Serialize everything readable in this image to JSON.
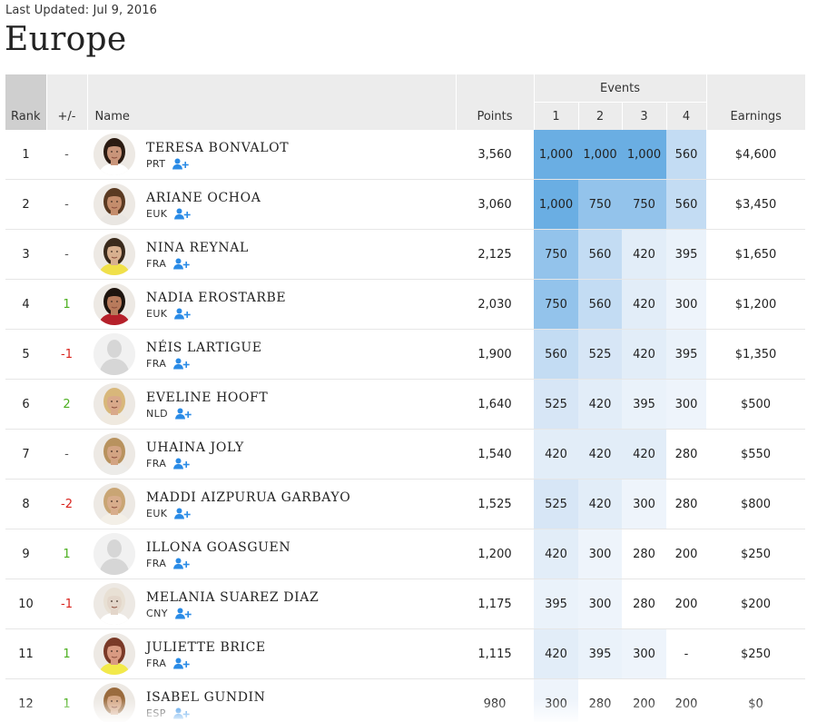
{
  "header": {
    "last_updated": "Last Updated: Jul 9, 2016",
    "title": "Europe"
  },
  "columns": {
    "rank": "Rank",
    "change": "+/-",
    "name": "Name",
    "points": "Points",
    "events": "Events",
    "event_numbers": [
      "1",
      "2",
      "3",
      "4"
    ],
    "earnings": "Earnings"
  },
  "icons": {
    "follow": "add-user-icon",
    "follow_color": "#2a8be6"
  },
  "event_colors": {
    "1000": "#6aaee3",
    "750": "#93c3eb",
    "560": "#c3dcf3",
    "525": "#d7e6f6",
    "420": "#e2edf8",
    "395": "#eaf2fa",
    "300": "#eef4fb",
    "280": "#ffffff",
    "200": "#ffffff"
  },
  "rows": [
    {
      "rank": "1",
      "change": "-",
      "trend": "none",
      "name": "TERESA BONVALOT",
      "country": "PRT",
      "points": "3,560",
      "events": [
        "1,000",
        "1,000",
        "1,000",
        "560"
      ],
      "earnings": "$4,600",
      "avatar": "photo",
      "skin": "#c9957a",
      "hair": "#2b1b12",
      "shirt": "#ffffff"
    },
    {
      "rank": "2",
      "change": "-",
      "trend": "none",
      "name": "ARIANE OCHOA",
      "country": "EUK",
      "points": "3,060",
      "events": [
        "1,000",
        "750",
        "750",
        "560"
      ],
      "earnings": "$3,450",
      "avatar": "photo",
      "skin": "#c48d6c",
      "hair": "#5a3a22",
      "shirt": "#e9e6e2"
    },
    {
      "rank": "3",
      "change": "-",
      "trend": "none",
      "name": "NINA REYNAL",
      "country": "FRA",
      "points": "2,125",
      "events": [
        "750",
        "560",
        "420",
        "395"
      ],
      "earnings": "$1,650",
      "avatar": "photo",
      "skin": "#d8b08f",
      "hair": "#3a2a1c",
      "shirt": "#f0e04a"
    },
    {
      "rank": "4",
      "change": "1",
      "trend": "up",
      "name": "NADIA EROSTARBE",
      "country": "EUK",
      "points": "2,030",
      "events": [
        "750",
        "560",
        "420",
        "300"
      ],
      "earnings": "$1,200",
      "avatar": "photo",
      "skin": "#b87b5c",
      "hair": "#1e140e",
      "shirt": "#b5202a"
    },
    {
      "rank": "5",
      "change": "-1",
      "trend": "down",
      "name": "NÉIS LARTIGUE",
      "country": "FRA",
      "points": "1,900",
      "events": [
        "560",
        "525",
        "420",
        "395"
      ],
      "earnings": "$1,350",
      "avatar": "placeholder"
    },
    {
      "rank": "6",
      "change": "2",
      "trend": "up",
      "name": "EVELINE HOOFT",
      "country": "NLD",
      "points": "1,640",
      "events": [
        "525",
        "420",
        "395",
        "300"
      ],
      "earnings": "$500",
      "avatar": "photo",
      "skin": "#d9a98a",
      "hair": "#d8b77a",
      "shirt": "#efe9df"
    },
    {
      "rank": "7",
      "change": "-",
      "trend": "none",
      "name": "UHAINA JOLY",
      "country": "FRA",
      "points": "1,540",
      "events": [
        "420",
        "420",
        "420",
        "280"
      ],
      "earnings": "$550",
      "avatar": "photo",
      "skin": "#d3a483",
      "hair": "#b8925e",
      "shirt": "#ecebe8"
    },
    {
      "rank": "8",
      "change": "-2",
      "trend": "down",
      "name": "MADDI AIZPURUA GARBAYO",
      "country": "EUK",
      "points": "1,525",
      "events": [
        "525",
        "420",
        "300",
        "280"
      ],
      "earnings": "$800",
      "avatar": "photo",
      "skin": "#d8ad8c",
      "hair": "#c9a574",
      "shirt": "#f3efe7"
    },
    {
      "rank": "9",
      "change": "1",
      "trend": "up",
      "name": "ILLONA GOASGUEN",
      "country": "FRA",
      "points": "1,200",
      "events": [
        "420",
        "300",
        "280",
        "200"
      ],
      "earnings": "$250",
      "avatar": "placeholder"
    },
    {
      "rank": "10",
      "change": "-1",
      "trend": "down",
      "name": "MELANIA SUAREZ DIAZ",
      "country": "CNY",
      "points": "1,175",
      "events": [
        "395",
        "300",
        "280",
        "200"
      ],
      "earnings": "$200",
      "avatar": "photo",
      "skin": "#e3d6ca",
      "hair": "#e8e0d4",
      "shirt": "#ffffff"
    },
    {
      "rank": "11",
      "change": "1",
      "trend": "up",
      "name": "JULIETTE BRICE",
      "country": "FRA",
      "points": "1,115",
      "events": [
        "420",
        "395",
        "300",
        "-"
      ],
      "earnings": "$250",
      "avatar": "photo",
      "skin": "#d99a82",
      "hair": "#7a3a28",
      "shirt": "#f2e94a"
    },
    {
      "rank": "12",
      "change": "1",
      "trend": "up",
      "name": "ISABEL GUNDIN",
      "country": "ESP",
      "points": "980",
      "events": [
        "300",
        "280",
        "200",
        "200"
      ],
      "earnings": "$0",
      "avatar": "photo",
      "skin": "#d4a582",
      "hair": "#9a6b3e",
      "shirt": "#ece8e2"
    }
  ]
}
